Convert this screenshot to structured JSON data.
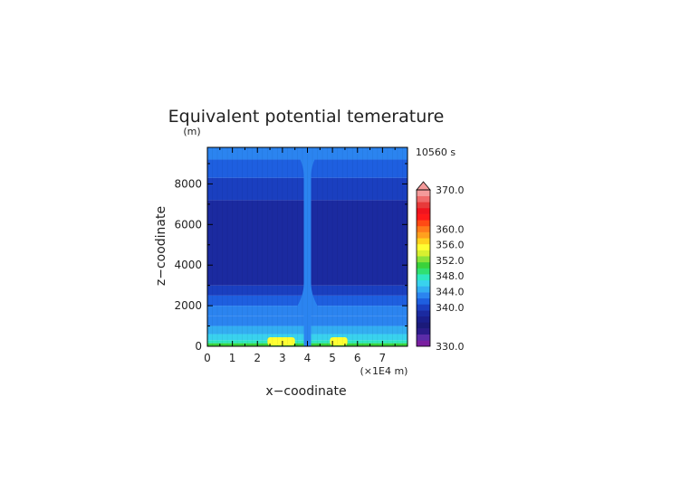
{
  "chart_data": {
    "type": "heatmap",
    "title": "Equivalent potential temerature",
    "time_label": "10560 s",
    "xlabel": "x−coodinate",
    "ylabel": "z−coodinate",
    "x_unit": "(×1E4 m)",
    "y_unit": "(m)",
    "xlim": [
      0,
      8
    ],
    "ylim": [
      0,
      9800
    ],
    "x_ticks": [
      "0",
      "1",
      "2",
      "3",
      "4",
      "5",
      "6",
      "7"
    ],
    "y_ticks": [
      "0",
      "2000",
      "4000",
      "6000",
      "8000"
    ],
    "colorbar": {
      "min": 330,
      "max": 370,
      "labels": [
        "370.0",
        "360.0",
        "356.0",
        "352.0",
        "348.0",
        "344.0",
        "340.0",
        "330.0"
      ],
      "colors": [
        "#7a1fa0",
        "#5b2ca8",
        "#2b1c8a",
        "#1b1a7a",
        "#1a1f8c",
        "#1b2aa0",
        "#1a3fc0",
        "#1e5fe0",
        "#2b84f0",
        "#33aef2",
        "#39d2ee",
        "#2ee8c0",
        "#30e070",
        "#3ad23a",
        "#8ae23a",
        "#d8f030",
        "#ffff33",
        "#ffd21e",
        "#ffa01e",
        "#ff7a1a",
        "#ff4a14",
        "#ff1a1a",
        "#f0141e",
        "#e83a3a",
        "#f06a6a",
        "#f49a9a"
      ]
    },
    "background_profile": [
      {
        "z_max": 150,
        "theta": 351.5
      },
      {
        "z_max": 300,
        "theta": 348.0
      },
      {
        "z_max": 600,
        "theta": 346.0
      },
      {
        "z_max": 1000,
        "theta": 345.0
      },
      {
        "z_max": 1500,
        "theta": 344.0
      },
      {
        "z_max": 2000,
        "theta": 343.0
      },
      {
        "z_max": 2500,
        "theta": 342.0
      },
      {
        "z_max": 3000,
        "theta": 340.5
      },
      {
        "z_max": 7200,
        "theta": 339.0
      },
      {
        "z_max": 8300,
        "theta": 341.0
      },
      {
        "z_max": 9200,
        "theta": 342.0
      },
      {
        "z_max": 9800,
        "theta": 344.0
      }
    ],
    "updraft_column": {
      "x_center": 4.0,
      "theta": 344.0
    },
    "surface_warm_patches": [
      {
        "x_start": 2.4,
        "x_end": 3.5,
        "theta": 356.0
      },
      {
        "x_start": 4.9,
        "x_end": 5.6,
        "theta": 356.0
      }
    ]
  }
}
